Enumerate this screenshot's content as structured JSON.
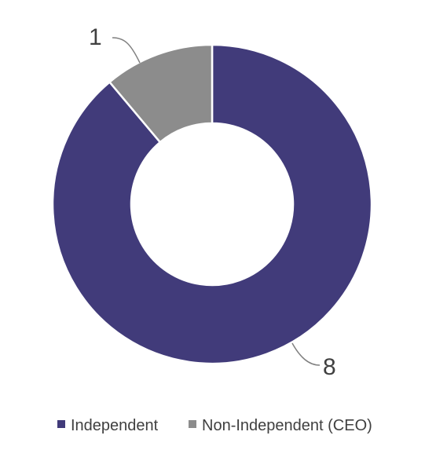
{
  "chart_data": {
    "type": "pie",
    "donut": true,
    "categories": [
      "Independent",
      "Non-Independent (CEO)"
    ],
    "values": [
      8,
      1
    ],
    "data_labels": [
      "8",
      "1"
    ],
    "colors": [
      "#413b7a",
      "#8c8c8c"
    ],
    "legend": {
      "placement": "bottom",
      "entries": [
        "Independent",
        "Non-Independent (CEO)"
      ]
    }
  }
}
